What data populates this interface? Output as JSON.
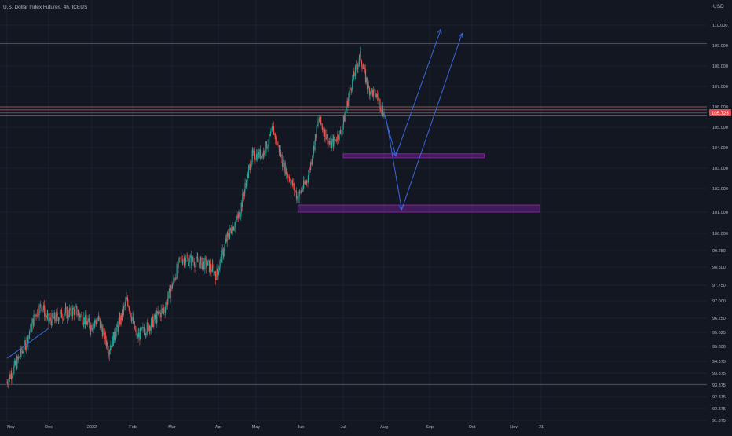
{
  "app": {
    "symbol_title": "U.S. Dollar Index Futures, 4h, ICEUS",
    "currency_label": "USD",
    "last_price_label": "105.725"
  },
  "colors": {
    "background": "#131722",
    "grid": "#1e222d",
    "up_candle": "#26a69a",
    "down_candle": "#ef5350",
    "drawing_blue": "#3a67d8",
    "zone_fill": "#7b1fa2",
    "zone_border": "#9c27b0",
    "hline_red": "#d05b5b",
    "hline_gray": "#5d606b",
    "price_badge": "#e0474c",
    "axis_text": "#b2b5be"
  },
  "chart_data": {
    "type": "candlestick",
    "title": "U.S. Dollar Index Futures, 4h, ICEUS",
    "ylabel": "USD",
    "ylim": [
      91.875,
      110.5
    ],
    "y_ticks": [
      "110.000",
      "109.000",
      "108.000",
      "107.000",
      "106.000",
      "105.000",
      "104.000",
      "103.000",
      "102.000",
      "101.000",
      "100.000",
      "99.250",
      "98.500",
      "97.750",
      "97.000",
      "96.250",
      "95.625",
      "95.000",
      "94.375",
      "93.875",
      "93.375",
      "92.875",
      "92.375",
      "91.875"
    ],
    "x_ticks": [
      "Nov",
      "Dec",
      "2022",
      "Feb",
      "Mar",
      "Apr",
      "May",
      "Jun",
      "Jul",
      "Aug",
      "Sep",
      "Oct",
      "Nov",
      "21"
    ],
    "price_path": [
      [
        "2021-11-01",
        93.5
      ],
      [
        "2021-11-08",
        94.3
      ],
      [
        "2021-11-15",
        95.2
      ],
      [
        "2021-11-22",
        96.5
      ],
      [
        "2021-11-26",
        96.8
      ],
      [
        "2021-12-01",
        96.1
      ],
      [
        "2021-12-10",
        96.4
      ],
      [
        "2021-12-20",
        96.6
      ],
      [
        "2021-12-31",
        95.9
      ],
      [
        "2022-01-06",
        96.2
      ],
      [
        "2022-01-14",
        94.9
      ],
      [
        "2022-01-20",
        95.7
      ],
      [
        "2022-01-28",
        97.1
      ],
      [
        "2022-02-04",
        95.4
      ],
      [
        "2022-02-14",
        96.0
      ],
      [
        "2022-02-24",
        96.7
      ],
      [
        "2022-03-07",
        98.9
      ],
      [
        "2022-03-14",
        98.8
      ],
      [
        "2022-03-25",
        98.6
      ],
      [
        "2022-03-31",
        98.2
      ],
      [
        "2022-04-08",
        99.8
      ],
      [
        "2022-04-18",
        100.9
      ],
      [
        "2022-04-28",
        103.6
      ],
      [
        "2022-05-06",
        103.7
      ],
      [
        "2022-05-13",
        104.9
      ],
      [
        "2022-05-20",
        103.2
      ],
      [
        "2022-05-30",
        101.6
      ],
      [
        "2022-06-06",
        102.5
      ],
      [
        "2022-06-14",
        105.4
      ],
      [
        "2022-06-22",
        104.1
      ],
      [
        "2022-06-30",
        104.8
      ],
      [
        "2022-07-06",
        106.8
      ],
      [
        "2022-07-14",
        108.5
      ],
      [
        "2022-07-20",
        106.9
      ],
      [
        "2022-07-27",
        106.5
      ],
      [
        "2022-08-01",
        105.7
      ]
    ],
    "horizontal_lines": [
      109.1,
      106.0,
      105.85,
      105.7,
      105.55,
      93.4
    ],
    "zones": [
      {
        "from": "2022-07-01",
        "to": "2022-10-10",
        "low": 103.5,
        "high": 103.7
      },
      {
        "from": "2022-05-30",
        "to": "2022-11-20",
        "low": 101.0,
        "high": 101.3
      }
    ],
    "trendline": {
      "from": [
        "2021-11-01",
        94.5
      ],
      "to": [
        "2021-12-01",
        95.8
      ]
    },
    "projections": [
      [
        [
          "2022-08-01",
          105.7
        ],
        [
          "2022-08-09",
          103.6
        ],
        [
          "2022-09-09",
          109.8
        ]
      ],
      [
        [
          "2022-08-02",
          105.6
        ],
        [
          "2022-08-13",
          101.1
        ],
        [
          "2022-09-24",
          109.6
        ]
      ]
    ]
  }
}
